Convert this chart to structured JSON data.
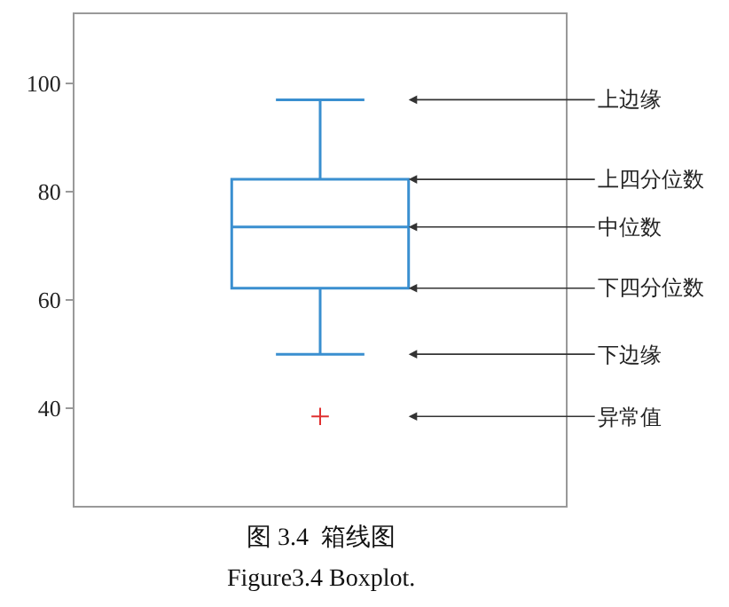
{
  "chart_data": {
    "type": "box",
    "categories": [
      null
    ],
    "series": [
      {
        "color": "#3a8fd0",
        "boxes": [
          {
            "low": 50,
            "q1": 62.2,
            "median": 73.5,
            "q3": 82.3,
            "high": 97,
            "outliers": [
              38.5
            ]
          }
        ]
      }
    ],
    "ylim": [
      22,
      112.8
    ],
    "yticks": [
      40,
      60,
      80,
      100
    ],
    "tick_labels": "y",
    "annotations": [
      "上边缘",
      "上四分位数",
      "中位数",
      "下四分位数",
      "下边缘",
      "异常值",
      "图 3.4  箱线图",
      "Figure3.4 Boxplot."
    ]
  }
}
